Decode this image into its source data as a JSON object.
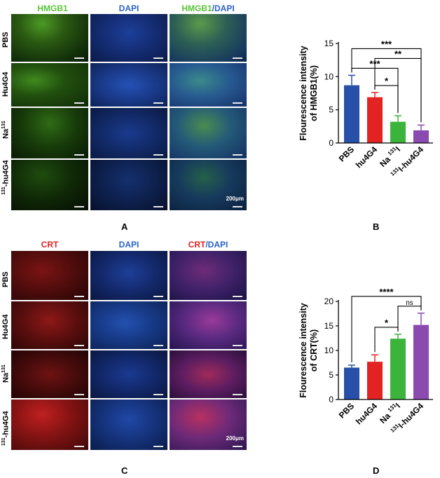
{
  "panelA": {
    "letter": "A",
    "col_titles": [
      {
        "parts": [
          {
            "text": "HMGB1",
            "color": "#5cc43a"
          }
        ]
      },
      {
        "parts": [
          {
            "text": "DAPI",
            "color": "#2a63c9"
          }
        ]
      },
      {
        "parts": [
          {
            "text": "HMGB1",
            "color": "#5cc43a"
          },
          {
            "text": "/DAPI",
            "color": "#2a63c9"
          }
        ]
      }
    ],
    "row_labels": [
      "PBS",
      "Hu4G4",
      "Na",
      "-hu4G4"
    ],
    "row_sup": [
      "",
      "",
      "131",
      "131"
    ],
    "row_sup_pos": [
      "",
      "",
      "after",
      "before"
    ],
    "scale": "200μm"
  },
  "panelB": {
    "letter": "B",
    "chart_data": {
      "type": "bar",
      "categories": [
        "PBS",
        "hu4G4",
        "Na 131I",
        "131I-hu4G4"
      ],
      "category_labels": [
        {
          "main": "PBS"
        },
        {
          "main": "hu4G4"
        },
        {
          "pre": "Na ",
          "sup": "131",
          "post": "I"
        },
        {
          "sup": "131",
          "post": "I-hu4G4"
        }
      ],
      "values": [
        8.7,
        6.9,
        3.2,
        1.9
      ],
      "errors": [
        1.5,
        0.7,
        0.9,
        0.8
      ],
      "colors": [
        "#2850a8",
        "#e32222",
        "#3cb43c",
        "#8a4ab0"
      ],
      "ylabel_lines": [
        "Flourescence intensity",
        "of HMGB1(%)"
      ],
      "ylim": [
        0,
        15
      ],
      "yticks": [
        "0",
        "5",
        "10",
        "15"
      ],
      "significance": [
        {
          "from": 0,
          "to": 3,
          "label": "***"
        },
        {
          "from": 0,
          "to": 2,
          "label": "***"
        },
        {
          "from": 1,
          "to": 3,
          "label": "**"
        },
        {
          "from": 1,
          "to": 2,
          "label": "*"
        }
      ]
    }
  },
  "panelC": {
    "letter": "C",
    "col_titles": [
      {
        "parts": [
          {
            "text": "CRT",
            "color": "#e32222"
          }
        ]
      },
      {
        "parts": [
          {
            "text": "DAPI",
            "color": "#2a63c9"
          }
        ]
      },
      {
        "parts": [
          {
            "text": "CRT",
            "color": "#e32222"
          },
          {
            "text": "/DAPI",
            "color": "#2a63c9"
          }
        ]
      }
    ],
    "row_labels": [
      "PBS",
      "Hu4G4",
      "Na",
      "-hu4G4"
    ],
    "row_sup": [
      "",
      "",
      "131",
      "131"
    ],
    "row_sup_pos": [
      "",
      "",
      "after",
      "before"
    ],
    "scale": "200μm"
  },
  "panelD": {
    "letter": "D",
    "chart_data": {
      "type": "bar",
      "categories": [
        "PBS",
        "hu4G4",
        "Na 131I",
        "131I-hu4G4"
      ],
      "category_labels": [
        {
          "main": "PBS"
        },
        {
          "main": "hu4G4"
        },
        {
          "pre": "Na ",
          "sup": "131",
          "post": "I"
        },
        {
          "sup": "131",
          "post": "I-hu4G4"
        }
      ],
      "values": [
        6.5,
        7.7,
        12.4,
        15.2
      ],
      "errors": [
        0.5,
        1.4,
        0.9,
        2.4
      ],
      "colors": [
        "#2850a8",
        "#e32222",
        "#3cb43c",
        "#8a4ab0"
      ],
      "ylabel_lines": [
        "Flourescence intensity",
        "of CRT(%)"
      ],
      "ylim": [
        0,
        20
      ],
      "yticks": [
        "0",
        "5",
        "10",
        "15",
        "20"
      ],
      "significance": [
        {
          "from": 0,
          "to": 3,
          "label": "****"
        },
        {
          "from": 1,
          "to": 2,
          "label": "*"
        },
        {
          "from": 2,
          "to": 3,
          "label": "ns"
        }
      ]
    }
  },
  "colors": {
    "green_stain": "#5cc43a",
    "blue_stain": "#2a63c9",
    "red_stain": "#e32222"
  }
}
